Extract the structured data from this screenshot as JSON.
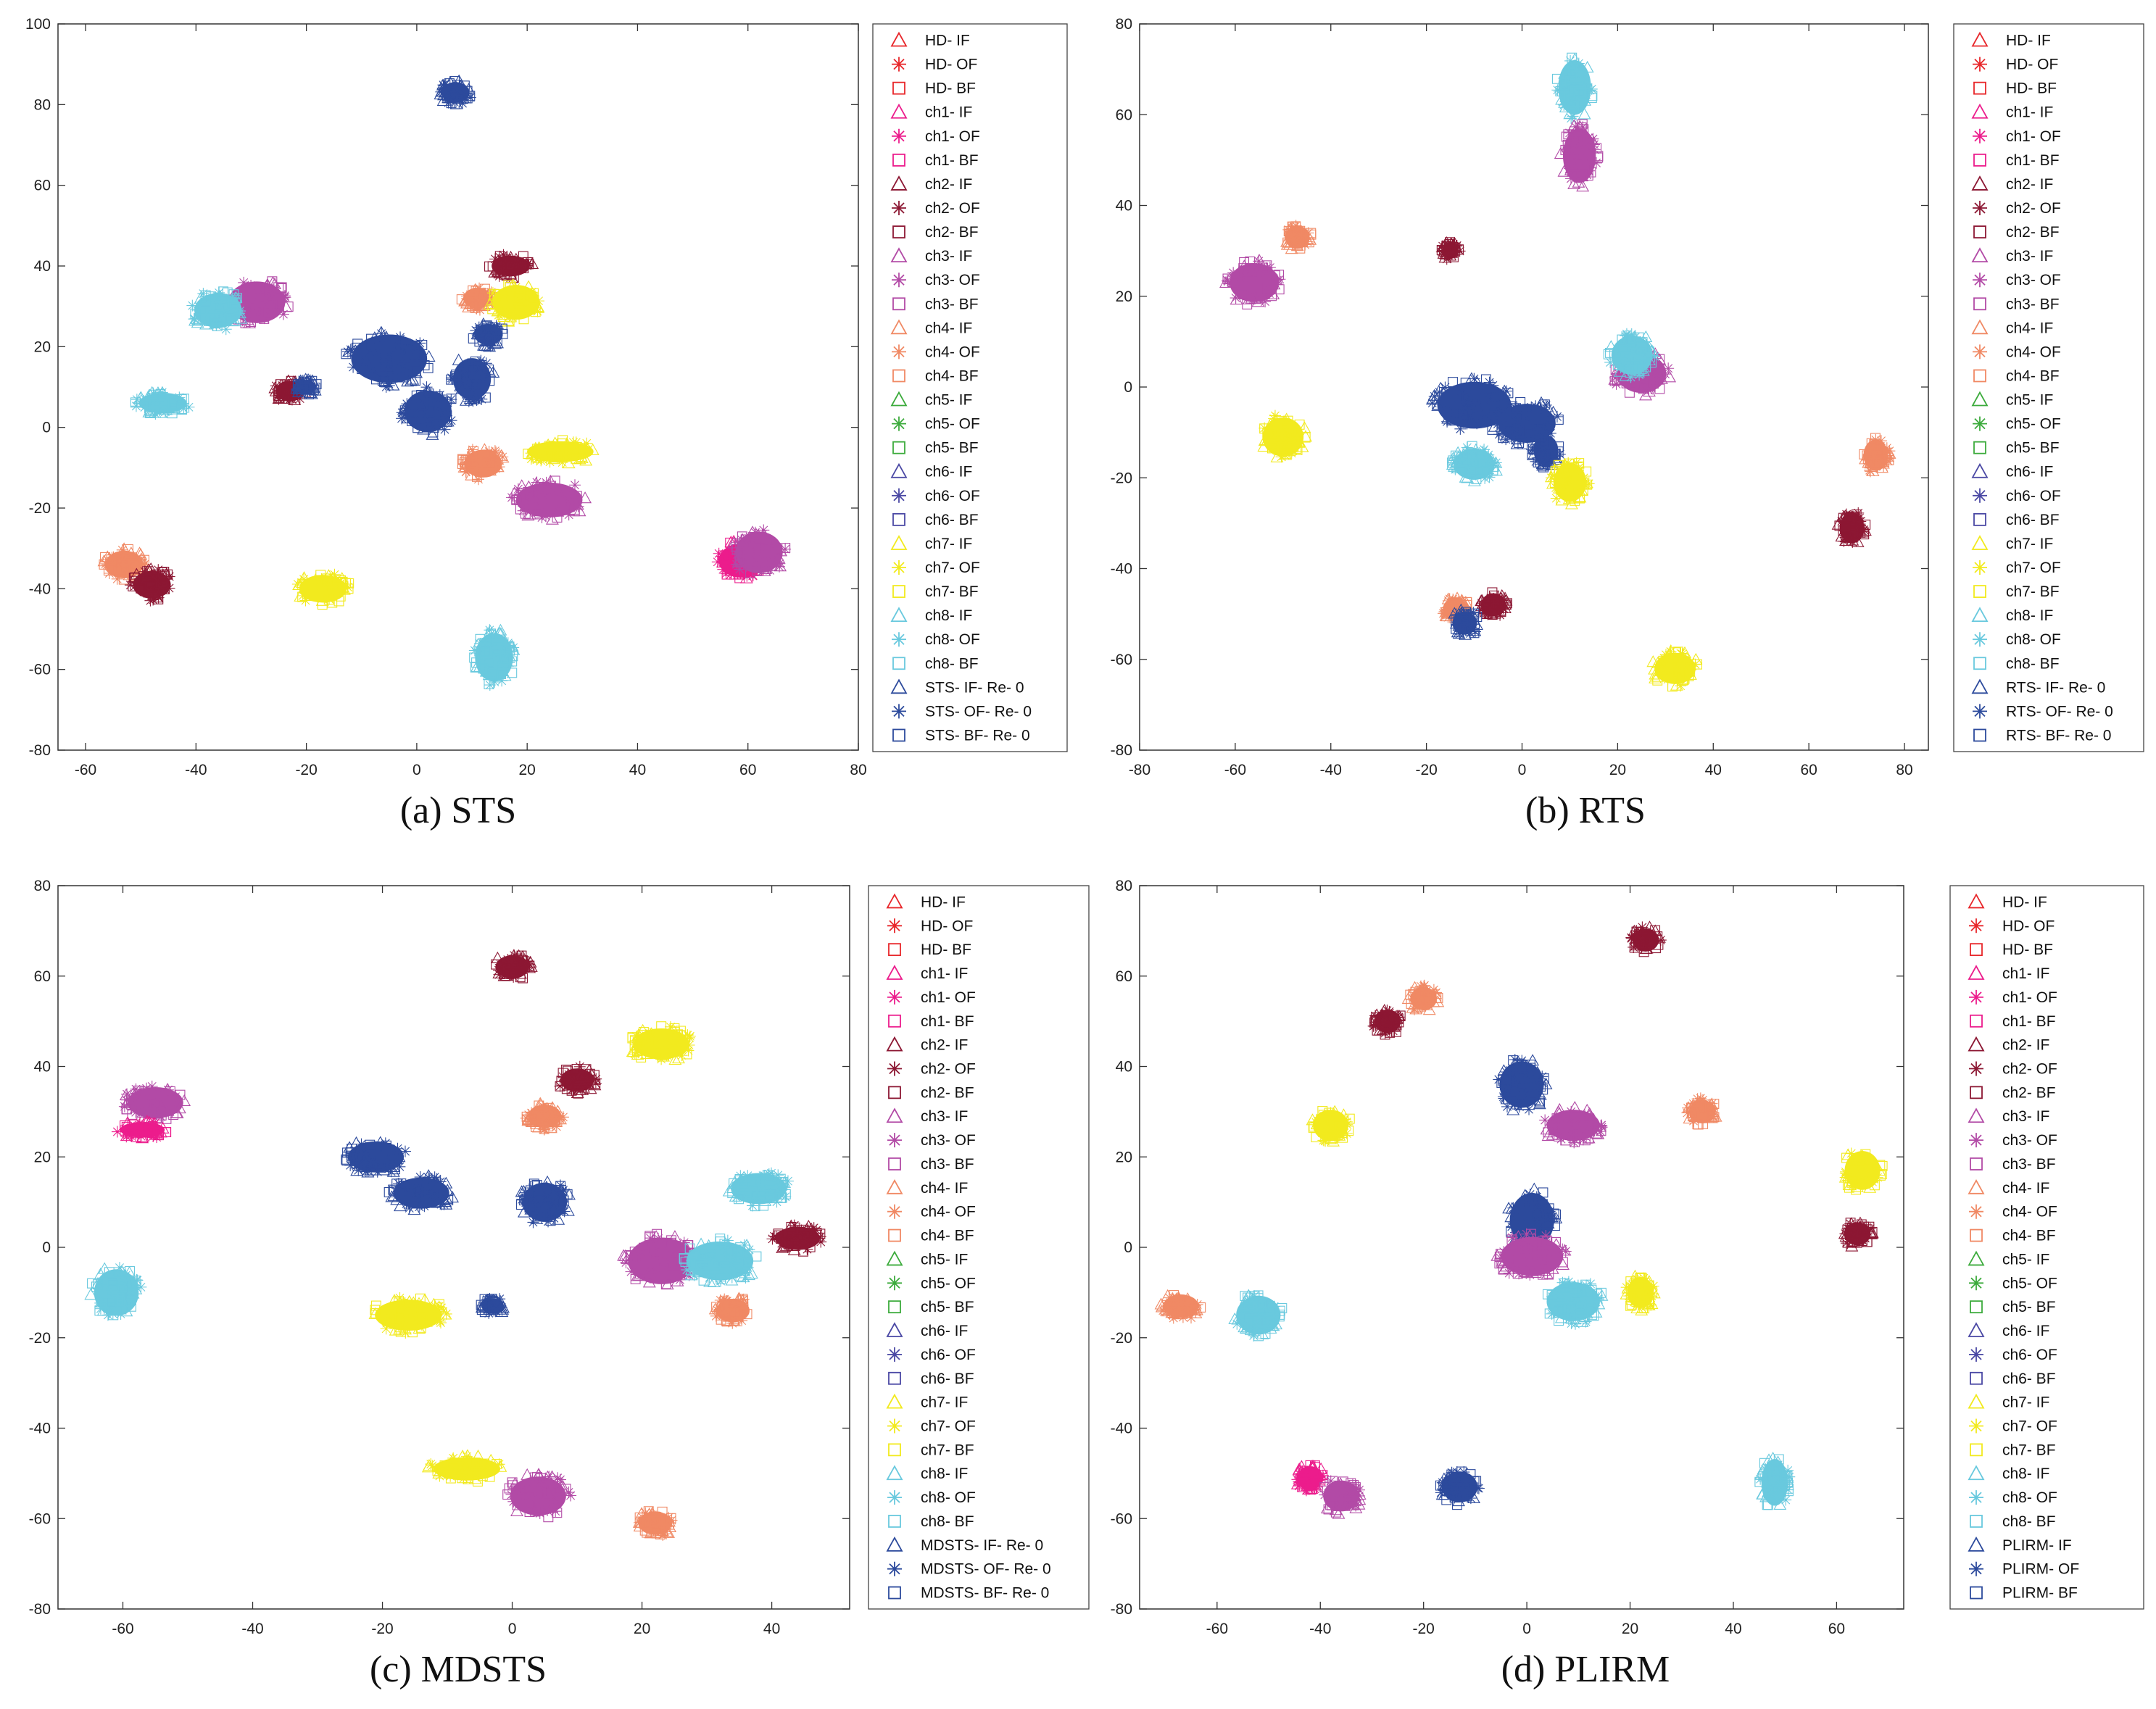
{
  "colors": {
    "HD": "#e8262a",
    "ch1": "#ec1c8c",
    "ch2": "#8c1733",
    "ch3": "#b24aa6",
    "ch4": "#f08964",
    "ch5": "#3cab3c",
    "ch6": "#4a48a4",
    "ch7": "#f2ea1e",
    "ch8": "#69c9de",
    "method": "#2c4a9c"
  },
  "chart_data": [
    {
      "type": "scatter",
      "caption": "(a) STS",
      "xlim": [
        -65,
        80
      ],
      "ylim": [
        -80,
        100
      ],
      "xticks": [
        -60,
        -40,
        -20,
        0,
        20,
        40,
        60,
        80
      ],
      "yticks": [
        -80,
        -60,
        -40,
        -20,
        0,
        20,
        40,
        60,
        80,
        100
      ],
      "legend": [
        "HD- IF",
        "HD- OF",
        "HD- BF",
        "ch1- IF",
        "ch1- OF",
        "ch1- BF",
        "ch2- IF",
        "ch2- OF",
        "ch2- BF",
        "ch3- IF",
        "ch3- OF",
        "ch3- BF",
        "ch4- IF",
        "ch4- OF",
        "ch4- BF",
        "ch5- IF",
        "ch5- OF",
        "ch5- BF",
        "ch6- IF",
        "ch6- OF",
        "ch6- BF",
        "ch7- IF",
        "ch7- OF",
        "ch7- BF",
        "ch8- IF",
        "ch8- OF",
        "ch8- BF",
        "STS- IF- Re- 0",
        "STS- OF- Re- 0",
        "STS- BF- Re- 0"
      ],
      "clusters": [
        {
          "color": "method",
          "x": 7,
          "y": 83,
          "rx": 3,
          "ry": 3
        },
        {
          "color": "ch3",
          "x": -29,
          "y": 31,
          "rx": 6,
          "ry": 6
        },
        {
          "color": "ch8",
          "x": -36,
          "y": 29,
          "rx": 5,
          "ry": 5
        },
        {
          "color": "ch2",
          "x": 17,
          "y": 40,
          "rx": 4,
          "ry": 3
        },
        {
          "color": "ch4",
          "x": 11,
          "y": 32,
          "rx": 3,
          "ry": 3
        },
        {
          "color": "ch7",
          "x": 18,
          "y": 31,
          "rx": 5,
          "ry": 5
        },
        {
          "color": "method",
          "x": -5,
          "y": 17,
          "rx": 8,
          "ry": 7
        },
        {
          "color": "method",
          "x": 2,
          "y": 4,
          "rx": 5,
          "ry": 6
        },
        {
          "color": "method",
          "x": 10,
          "y": 12,
          "rx": 4,
          "ry": 6
        },
        {
          "color": "method",
          "x": 13,
          "y": 23,
          "rx": 3,
          "ry": 3
        },
        {
          "color": "ch8",
          "x": -46,
          "y": 6,
          "rx": 5,
          "ry": 3
        },
        {
          "color": "ch2",
          "x": -23,
          "y": 9,
          "rx": 3,
          "ry": 3
        },
        {
          "color": "method",
          "x": -20,
          "y": 10,
          "rx": 2,
          "ry": 2
        },
        {
          "color": "ch4",
          "x": 12,
          "y": -9,
          "rx": 4,
          "ry": 4
        },
        {
          "color": "ch7",
          "x": 26,
          "y": -6,
          "rx": 7,
          "ry": 3
        },
        {
          "color": "ch3",
          "x": 24,
          "y": -18,
          "rx": 7,
          "ry": 5
        },
        {
          "color": "ch1",
          "x": 59,
          "y": -33,
          "rx": 5,
          "ry": 5
        },
        {
          "color": "ch3",
          "x": 62,
          "y": -31,
          "rx": 5,
          "ry": 6
        },
        {
          "color": "ch4",
          "x": -53,
          "y": -34,
          "rx": 4,
          "ry": 4
        },
        {
          "color": "ch2",
          "x": -48,
          "y": -39,
          "rx": 4,
          "ry": 4
        },
        {
          "color": "ch7",
          "x": -17,
          "y": -40,
          "rx": 5,
          "ry": 4
        },
        {
          "color": "ch8",
          "x": 14,
          "y": -57,
          "rx": 4,
          "ry": 7
        }
      ]
    },
    {
      "type": "scatter",
      "caption": "(b) RTS",
      "xlim": [
        -80,
        85
      ],
      "ylim": [
        -80,
        80
      ],
      "xticks": [
        -80,
        -60,
        -40,
        -20,
        0,
        20,
        40,
        60,
        80
      ],
      "yticks": [
        -80,
        -60,
        -40,
        -20,
        0,
        20,
        40,
        60,
        80
      ],
      "legend": [
        "HD- IF",
        "HD- OF",
        "HD- BF",
        "ch1- IF",
        "ch1- OF",
        "ch1- BF",
        "ch2- IF",
        "ch2- OF",
        "ch2- BF",
        "ch3- IF",
        "ch3- OF",
        "ch3- BF",
        "ch4- IF",
        "ch4- OF",
        "ch4- BF",
        "ch5- IF",
        "ch5- OF",
        "ch5- BF",
        "ch6- IF",
        "ch6- OF",
        "ch6- BF",
        "ch7- IF",
        "ch7- OF",
        "ch7- BF",
        "ch8- IF",
        "ch8- OF",
        "ch8- BF",
        "RTS- IF- Re- 0",
        "RTS- OF- Re- 0",
        "RTS- BF- Re- 0"
      ],
      "clusters": [
        {
          "color": "ch8",
          "x": 11,
          "y": 66,
          "rx": 4,
          "ry": 7
        },
        {
          "color": "ch3",
          "x": 12,
          "y": 51,
          "rx": 4,
          "ry": 7
        },
        {
          "color": "ch4",
          "x": -47,
          "y": 33,
          "rx": 3,
          "ry": 3
        },
        {
          "color": "ch3",
          "x": -56,
          "y": 23,
          "rx": 6,
          "ry": 5
        },
        {
          "color": "ch2",
          "x": -15,
          "y": 30,
          "rx": 2,
          "ry": 2
        },
        {
          "color": "ch3",
          "x": 25,
          "y": 3,
          "rx": 6,
          "ry": 5
        },
        {
          "color": "ch8",
          "x": 23,
          "y": 7,
          "rx": 5,
          "ry": 5
        },
        {
          "color": "method",
          "x": -10,
          "y": -4,
          "rx": 9,
          "ry": 6
        },
        {
          "color": "method",
          "x": 1,
          "y": -8,
          "rx": 7,
          "ry": 5
        },
        {
          "color": "method",
          "x": 5,
          "y": -14,
          "rx": 3,
          "ry": 4
        },
        {
          "color": "ch8",
          "x": -10,
          "y": -17,
          "rx": 5,
          "ry": 4
        },
        {
          "color": "ch7",
          "x": -50,
          "y": -11,
          "rx": 5,
          "ry": 5
        },
        {
          "color": "ch7",
          "x": 10,
          "y": -21,
          "rx": 4,
          "ry": 5
        },
        {
          "color": "ch4",
          "x": 74,
          "y": -15,
          "rx": 3,
          "ry": 4
        },
        {
          "color": "ch2",
          "x": 69,
          "y": -31,
          "rx": 3,
          "ry": 4
        },
        {
          "color": "ch4",
          "x": -14,
          "y": -49,
          "rx": 3,
          "ry": 3
        },
        {
          "color": "ch2",
          "x": -6,
          "y": -48,
          "rx": 3,
          "ry": 3
        },
        {
          "color": "method",
          "x": -12,
          "y": -52,
          "rx": 3,
          "ry": 3
        },
        {
          "color": "ch7",
          "x": 32,
          "y": -62,
          "rx": 5,
          "ry": 4
        }
      ]
    },
    {
      "type": "scatter",
      "caption": "(c) MDSTS",
      "xlim": [
        -70,
        52
      ],
      "ylim": [
        -80,
        80
      ],
      "xticks": [
        -60,
        -40,
        -20,
        0,
        20,
        40
      ],
      "yticks": [
        -80,
        -60,
        -40,
        -20,
        0,
        20,
        40,
        60,
        80
      ],
      "legend": [
        "HD- IF",
        "HD- OF",
        "HD- BF",
        "ch1- IF",
        "ch1- OF",
        "ch1- BF",
        "ch2- IF",
        "ch2- OF",
        "ch2- BF",
        "ch3- IF",
        "ch3- OF",
        "ch3- BF",
        "ch4- IF",
        "ch4- OF",
        "ch4- BF",
        "ch5- IF",
        "ch5- OF",
        "ch5- BF",
        "ch6- IF",
        "ch6- OF",
        "ch6- BF",
        "ch7- IF",
        "ch7- OF",
        "ch7- BF",
        "ch8- IF",
        "ch8- OF",
        "ch8- BF",
        "MDSTS- IF- Re- 0",
        "MDSTS- OF- Re- 0",
        "MDSTS- BF- Re- 0"
      ],
      "clusters": [
        {
          "color": "ch2",
          "x": 0,
          "y": 62,
          "rx": 3,
          "ry": 3
        },
        {
          "color": "ch3",
          "x": -55,
          "y": 32,
          "rx": 5,
          "ry": 4
        },
        {
          "color": "ch1",
          "x": -57,
          "y": 26,
          "rx": 4,
          "ry": 2
        },
        {
          "color": "ch2",
          "x": 10,
          "y": 37,
          "rx": 3,
          "ry": 3
        },
        {
          "color": "ch4",
          "x": 5,
          "y": 29,
          "rx": 3,
          "ry": 3
        },
        {
          "color": "ch7",
          "x": 23,
          "y": 45,
          "rx": 5,
          "ry": 4
        },
        {
          "color": "method",
          "x": -21,
          "y": 20,
          "rx": 5,
          "ry": 4
        },
        {
          "color": "method",
          "x": -14,
          "y": 12,
          "rx": 5,
          "ry": 4
        },
        {
          "color": "method",
          "x": 5,
          "y": 10,
          "rx": 4,
          "ry": 5
        },
        {
          "color": "method",
          "x": -3,
          "y": -13,
          "rx": 2,
          "ry": 2
        },
        {
          "color": "ch3",
          "x": 23,
          "y": -3,
          "rx": 6,
          "ry": 6
        },
        {
          "color": "ch8",
          "x": 32,
          "y": -3,
          "rx": 6,
          "ry": 5
        },
        {
          "color": "ch8",
          "x": 38,
          "y": 13,
          "rx": 5,
          "ry": 4
        },
        {
          "color": "ch2",
          "x": 44,
          "y": 2,
          "rx": 4,
          "ry": 3
        },
        {
          "color": "ch4",
          "x": 34,
          "y": -14,
          "rx": 3,
          "ry": 3
        },
        {
          "color": "ch8",
          "x": -61,
          "y": -10,
          "rx": 4,
          "ry": 6
        },
        {
          "color": "ch7",
          "x": -16,
          "y": -15,
          "rx": 6,
          "ry": 4
        },
        {
          "color": "ch7",
          "x": -7,
          "y": -49,
          "rx": 6,
          "ry": 3
        },
        {
          "color": "ch3",
          "x": 4,
          "y": -55,
          "rx": 5,
          "ry": 5
        },
        {
          "color": "ch4",
          "x": 22,
          "y": -61,
          "rx": 3,
          "ry": 3
        }
      ]
    },
    {
      "type": "scatter",
      "caption": "(d) PLIRM",
      "xlim": [
        -75,
        73
      ],
      "ylim": [
        -80,
        80
      ],
      "xticks": [
        -60,
        -40,
        -20,
        0,
        20,
        40,
        60
      ],
      "yticks": [
        -80,
        -60,
        -40,
        -20,
        0,
        20,
        40,
        60,
        80
      ],
      "legend": [
        "HD- IF",
        "HD- OF",
        "HD- BF",
        "ch1- IF",
        "ch1- OF",
        "ch1- BF",
        "ch2- IF",
        "ch2- OF",
        "ch2- BF",
        "ch3- IF",
        "ch3- OF",
        "ch3- BF",
        "ch4- IF",
        "ch4- OF",
        "ch4- BF",
        "ch5- IF",
        "ch5- OF",
        "ch5- BF",
        "ch6- IF",
        "ch6- OF",
        "ch6- BF",
        "ch7- IF",
        "ch7- OF",
        "ch7- BF",
        "ch8- IF",
        "ch8- OF",
        "ch8- BF",
        "PLIRM- IF",
        "PLIRM- OF",
        "PLIRM- BF"
      ],
      "clusters": [
        {
          "color": "ch2",
          "x": 23,
          "y": 68,
          "rx": 3,
          "ry": 3
        },
        {
          "color": "ch2",
          "x": -27,
          "y": 50,
          "rx": 3,
          "ry": 3
        },
        {
          "color": "ch4",
          "x": -20,
          "y": 55,
          "rx": 3,
          "ry": 3
        },
        {
          "color": "ch7",
          "x": -38,
          "y": 27,
          "rx": 4,
          "ry": 4
        },
        {
          "color": "method",
          "x": -1,
          "y": 36,
          "rx": 5,
          "ry": 6
        },
        {
          "color": "ch3",
          "x": 9,
          "y": 27,
          "rx": 6,
          "ry": 4
        },
        {
          "color": "ch4",
          "x": 34,
          "y": 30,
          "rx": 3,
          "ry": 3
        },
        {
          "color": "ch7",
          "x": 65,
          "y": 17,
          "rx": 4,
          "ry": 5
        },
        {
          "color": "ch2",
          "x": 64,
          "y": 3,
          "rx": 3,
          "ry": 3
        },
        {
          "color": "method",
          "x": 1,
          "y": 6,
          "rx": 5,
          "ry": 7
        },
        {
          "color": "ch3",
          "x": 1,
          "y": -2,
          "rx": 7,
          "ry": 5
        },
        {
          "color": "ch8",
          "x": 9,
          "y": -12,
          "rx": 6,
          "ry": 5
        },
        {
          "color": "ch7",
          "x": 22,
          "y": -10,
          "rx": 3,
          "ry": 4
        },
        {
          "color": "ch4",
          "x": -67,
          "y": -13,
          "rx": 4,
          "ry": 3
        },
        {
          "color": "ch8",
          "x": -52,
          "y": -15,
          "rx": 5,
          "ry": 5
        },
        {
          "color": "ch1",
          "x": -42,
          "y": -51,
          "rx": 3,
          "ry": 3
        },
        {
          "color": "ch3",
          "x": -36,
          "y": -55,
          "rx": 4,
          "ry": 4
        },
        {
          "color": "method",
          "x": -13,
          "y": -53,
          "rx": 4,
          "ry": 4
        },
        {
          "color": "ch8",
          "x": 48,
          "y": -52,
          "rx": 3,
          "ry": 6
        }
      ]
    }
  ]
}
